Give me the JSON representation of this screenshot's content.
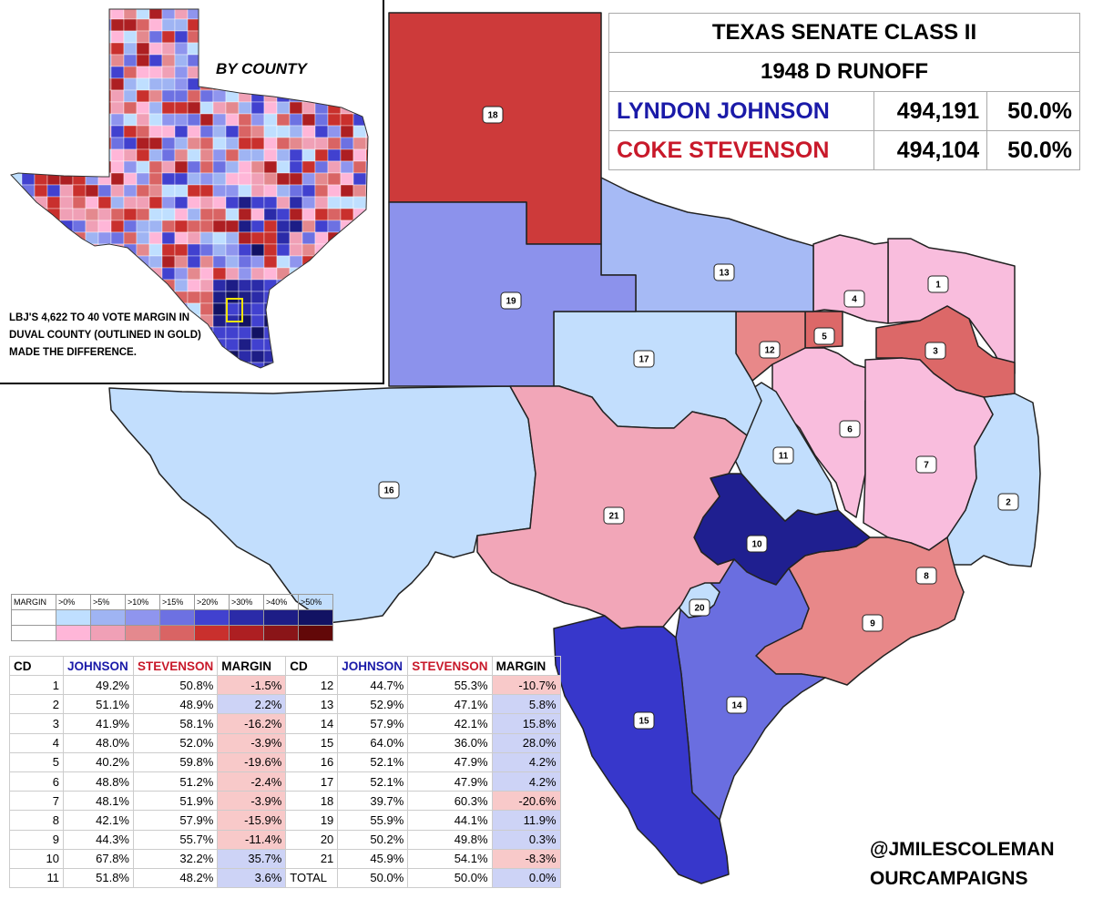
{
  "results": {
    "title_line1": "TEXAS SENATE CLASS II",
    "title_line2": "1948 D RUNOFF",
    "candidates": [
      {
        "name": "LYNDON JOHNSON",
        "votes": "494,191",
        "pct": "50.0%",
        "color": "#1a1aa8"
      },
      {
        "name": "COKE STEVENSON",
        "votes": "494,104",
        "pct": "50.0%",
        "color": "#c8192a"
      }
    ]
  },
  "inset": {
    "title": "BY COUNTY",
    "note": "LBJ'S 4,622 TO 40 VOTE MARGIN IN DUVAL COUNTY (OUTLINED IN GOLD) MADE THE DIFFERENCE.",
    "highlight_color": "#f2e600"
  },
  "legend": {
    "label": "MARGIN",
    "thresholds": [
      ">0%",
      ">5%",
      ">10%",
      ">15%",
      ">20%",
      ">30%",
      ">40%",
      ">50%"
    ],
    "johnson_colors": [
      "#bfdfff",
      "#9fb4f3",
      "#8f95ee",
      "#6d71e2",
      "#4141cf",
      "#2b2ba8",
      "#1d1d86",
      "#121263"
    ],
    "stevenson_colors": [
      "#ffb6d8",
      "#f0a0b6",
      "#e4898e",
      "#d96464",
      "#c9302d",
      "#ad1f22",
      "#8a1518",
      "#620808"
    ]
  },
  "districts": [
    {
      "cd": "1",
      "johnson": "49.2%",
      "stevenson": "50.8%",
      "margin": "-1.5%",
      "winner": "S",
      "color": "#f9bddd"
    },
    {
      "cd": "2",
      "johnson": "51.1%",
      "stevenson": "48.9%",
      "margin": "2.2%",
      "winner": "J",
      "color": "#c2defd"
    },
    {
      "cd": "3",
      "johnson": "41.9%",
      "stevenson": "58.1%",
      "margin": "-16.2%",
      "winner": "S",
      "color": "#dc6868"
    },
    {
      "cd": "4",
      "johnson": "48.0%",
      "stevenson": "52.0%",
      "margin": "-3.9%",
      "winner": "S",
      "color": "#f9bddd"
    },
    {
      "cd": "5",
      "johnson": "40.2%",
      "stevenson": "59.8%",
      "margin": "-19.6%",
      "winner": "S",
      "color": "#dc6868"
    },
    {
      "cd": "6",
      "johnson": "48.8%",
      "stevenson": "51.2%",
      "margin": "-2.4%",
      "winner": "S",
      "color": "#f9bddd"
    },
    {
      "cd": "7",
      "johnson": "48.1%",
      "stevenson": "51.9%",
      "margin": "-3.9%",
      "winner": "S",
      "color": "#f9bddd"
    },
    {
      "cd": "8",
      "johnson": "42.1%",
      "stevenson": "57.9%",
      "margin": "-15.9%",
      "winner": "S",
      "color": "#dc6868"
    },
    {
      "cd": "9",
      "johnson": "44.3%",
      "stevenson": "55.7%",
      "margin": "-11.4%",
      "winner": "S",
      "color": "#e88889"
    },
    {
      "cd": "10",
      "johnson": "67.8%",
      "stevenson": "32.2%",
      "margin": "35.7%",
      "winner": "J",
      "color": "#1f1f90"
    },
    {
      "cd": "11",
      "johnson": "51.8%",
      "stevenson": "48.2%",
      "margin": "3.6%",
      "winner": "J",
      "color": "#c2defd"
    },
    {
      "cd": "12",
      "johnson": "44.7%",
      "stevenson": "55.3%",
      "margin": "-10.7%",
      "winner": "S",
      "color": "#e88889"
    },
    {
      "cd": "13",
      "johnson": "52.9%",
      "stevenson": "47.1%",
      "margin": "5.8%",
      "winner": "J",
      "color": "#a6baf5"
    },
    {
      "cd": "14",
      "johnson": "57.9%",
      "stevenson": "42.1%",
      "margin": "15.8%",
      "winner": "J",
      "color": "#6a6ee0"
    },
    {
      "cd": "15",
      "johnson": "64.0%",
      "stevenson": "36.0%",
      "margin": "28.0%",
      "winner": "J",
      "color": "#3737cb"
    },
    {
      "cd": "16",
      "johnson": "52.1%",
      "stevenson": "47.9%",
      "margin": "4.2%",
      "winner": "J",
      "color": "#c2defd"
    },
    {
      "cd": "17",
      "johnson": "52.1%",
      "stevenson": "47.9%",
      "margin": "4.2%",
      "winner": "J",
      "color": "#c2defd"
    },
    {
      "cd": "18",
      "johnson": "39.7%",
      "stevenson": "60.3%",
      "margin": "-20.6%",
      "winner": "S",
      "color": "#cd3a3a"
    },
    {
      "cd": "19",
      "johnson": "55.9%",
      "stevenson": "44.1%",
      "margin": "11.9%",
      "winner": "J",
      "color": "#8c92ec"
    },
    {
      "cd": "20",
      "johnson": "50.2%",
      "stevenson": "49.8%",
      "margin": "0.3%",
      "winner": "J",
      "color": "#c2defd"
    },
    {
      "cd": "21",
      "johnson": "45.9%",
      "stevenson": "54.1%",
      "margin": "-8.3%",
      "winner": "S",
      "color": "#f2a6b8"
    }
  ],
  "table": {
    "headers": [
      "CD",
      "JOHNSON",
      "STEVENSON",
      "MARGIN"
    ],
    "total": {
      "label": "TOTAL",
      "johnson": "50.0%",
      "stevenson": "50.0%",
      "margin": "0.0%"
    }
  },
  "credits": {
    "line1": "@JMILESCOLEMAN",
    "line2": "OURCAMPAIGNS"
  }
}
